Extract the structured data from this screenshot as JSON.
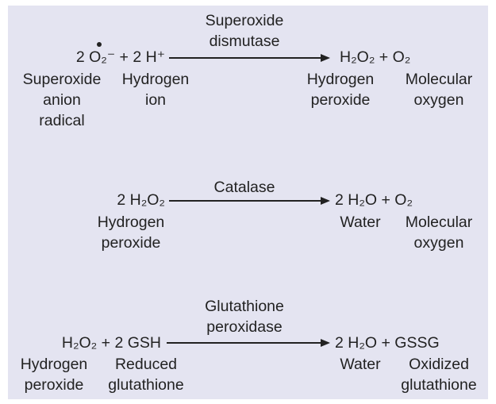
{
  "reactions": [
    {
      "enzyme_line1": "Superoxide",
      "enzyme_line2": "dismutase",
      "left_equation": "2 O₂⁻ + 2 H⁺",
      "right_equation": "H₂O₂ + O₂",
      "labels": {
        "superoxide": [
          "Superoxide",
          "anion",
          "radical"
        ],
        "hydrogen_ion": [
          "Hydrogen",
          "ion"
        ],
        "hydrogen_peroxide": [
          "Hydrogen",
          "peroxide"
        ],
        "molecular_oxygen": [
          "Molecular",
          "oxygen"
        ]
      }
    },
    {
      "enzyme_line1": "Catalase",
      "left_equation": "2 H₂O₂",
      "right_equation": "2 H₂O + O₂",
      "labels": {
        "hydrogen_peroxide": [
          "Hydrogen",
          "peroxide"
        ],
        "water": [
          "Water"
        ],
        "molecular_oxygen": [
          "Molecular",
          "oxygen"
        ]
      }
    },
    {
      "enzyme_line1": "Glutathione",
      "enzyme_line2": "peroxidase",
      "left_equation": "H₂O₂ + 2 GSH",
      "right_equation": "2 H₂O + GSSG",
      "labels": {
        "hydrogen_peroxide": [
          "Hydrogen",
          "peroxide"
        ],
        "reduced_glutathione": [
          "Reduced",
          "glutathione"
        ],
        "water": [
          "Water"
        ],
        "oxidized_glutathione": [
          "Oxidized",
          "glutathione"
        ]
      }
    }
  ],
  "colors": {
    "panel": "#e4e4f1",
    "text": "#222222"
  }
}
